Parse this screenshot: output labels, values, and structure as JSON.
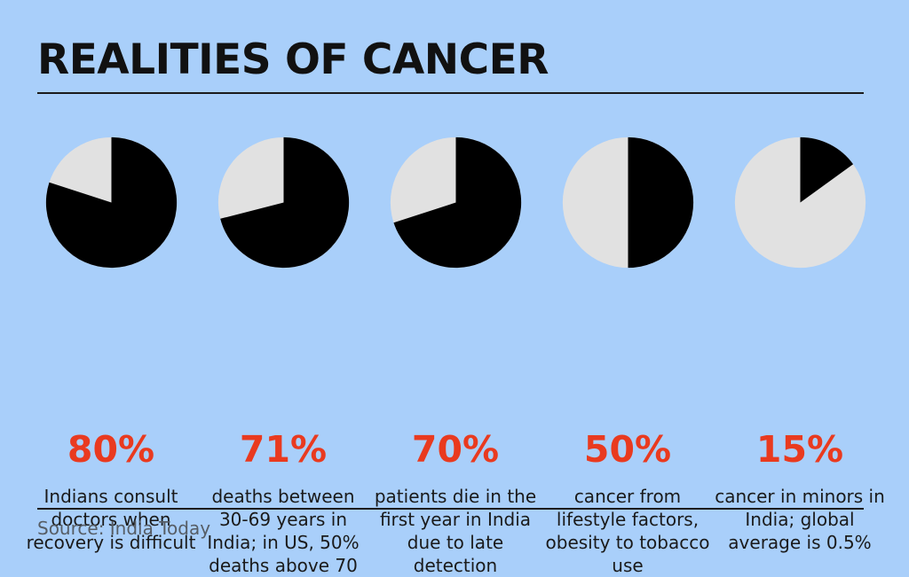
{
  "title": "REALITIES OF CANCER",
  "source": "Source: India Today",
  "colors": {
    "background": "#a9cffa",
    "filled": "#000000",
    "remainder": "#e1e1e1",
    "percent_text": "#e93a1f",
    "rule": "#1b1b1b"
  },
  "chart_data": [
    {
      "type": "pie",
      "values": [
        80,
        20
      ],
      "label": "80%",
      "description": "Indians consult doctors when recovery is difficult"
    },
    {
      "type": "pie",
      "values": [
        71,
        29
      ],
      "label": "71%",
      "description": "deaths between 30-69 years in India; in US, 50% deaths above 70"
    },
    {
      "type": "pie",
      "values": [
        70,
        30
      ],
      "label": "70%",
      "description": "patients die in the first year in India due to late detection"
    },
    {
      "type": "pie",
      "values": [
        50,
        50
      ],
      "label": "50%",
      "description": "cancer from lifestyle factors, obesity to tobacco use"
    },
    {
      "type": "pie",
      "values": [
        15,
        85
      ],
      "label": "15%",
      "description": "cancer in minors in India; global average is 0.5%"
    }
  ]
}
